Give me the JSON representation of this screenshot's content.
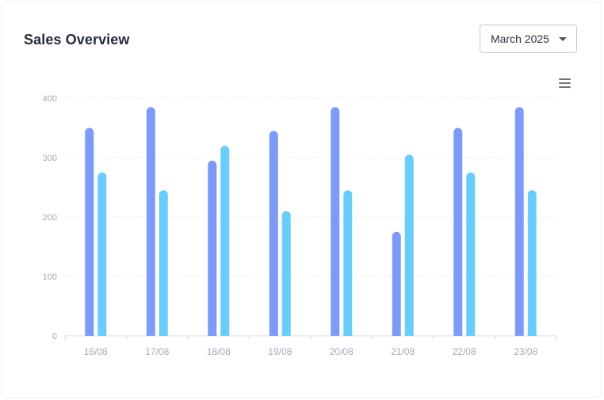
{
  "header": {
    "title": "Sales Overview",
    "period_selected": "March 2025"
  },
  "toolbar": {
    "menu_icon": "hamburger-menu-icon"
  },
  "colors": {
    "series_a": "#7b9bf7",
    "series_b": "#68cdfb",
    "grid": "#e6e8ee",
    "axis_text": "#a4a9b5"
  },
  "chart_data": {
    "type": "bar",
    "categories": [
      "16/08",
      "17/08",
      "18/08",
      "19/08",
      "20/08",
      "21/08",
      "22/08",
      "23/08"
    ],
    "series": [
      {
        "values": [
          350,
          385,
          295,
          345,
          385,
          175,
          350,
          385
        ]
      },
      {
        "values": [
          275,
          245,
          320,
          210,
          245,
          305,
          275,
          245
        ]
      }
    ],
    "yticks": [
      "0",
      "100",
      "200",
      "300",
      "400"
    ],
    "ylim": [
      0,
      400
    ],
    "grid": true,
    "legend": "none",
    "title": "",
    "xlabel": "",
    "ylabel": ""
  }
}
